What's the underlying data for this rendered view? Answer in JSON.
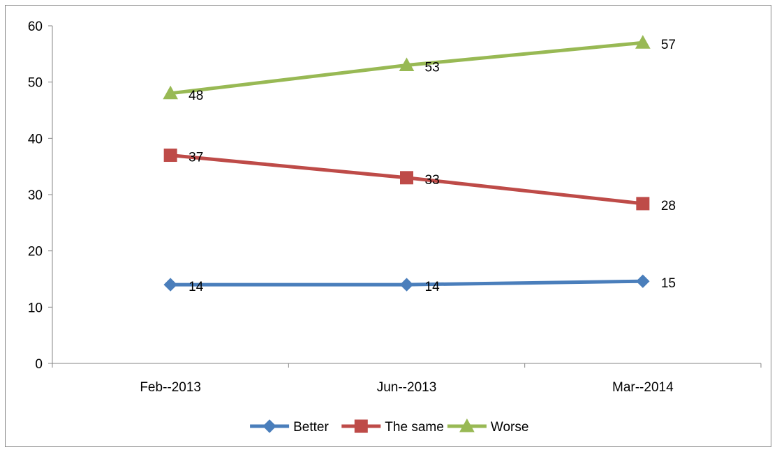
{
  "chart_data": {
    "type": "line",
    "categories": [
      "Feb--2013",
      "Jun--2013",
      "Mar--2014"
    ],
    "series": [
      {
        "name": "Better",
        "values": [
          14,
          14,
          14.6
        ],
        "labels": [
          "14",
          "14",
          "15"
        ],
        "color": "#4a7ebb",
        "marker": "diamond"
      },
      {
        "name": "The same",
        "values": [
          37,
          33,
          28.4
        ],
        "labels": [
          "37",
          "33",
          "28"
        ],
        "color": "#be4b48",
        "marker": "square"
      },
      {
        "name": "Worse",
        "values": [
          48,
          53,
          57
        ],
        "labels": [
          "48",
          "53",
          "57"
        ],
        "color": "#98b954",
        "marker": "triangle"
      }
    ],
    "ylim": [
      0,
      60
    ],
    "yticks": [
      0,
      10,
      20,
      30,
      40,
      50,
      60
    ],
    "legend": "bottom",
    "grid": false
  }
}
